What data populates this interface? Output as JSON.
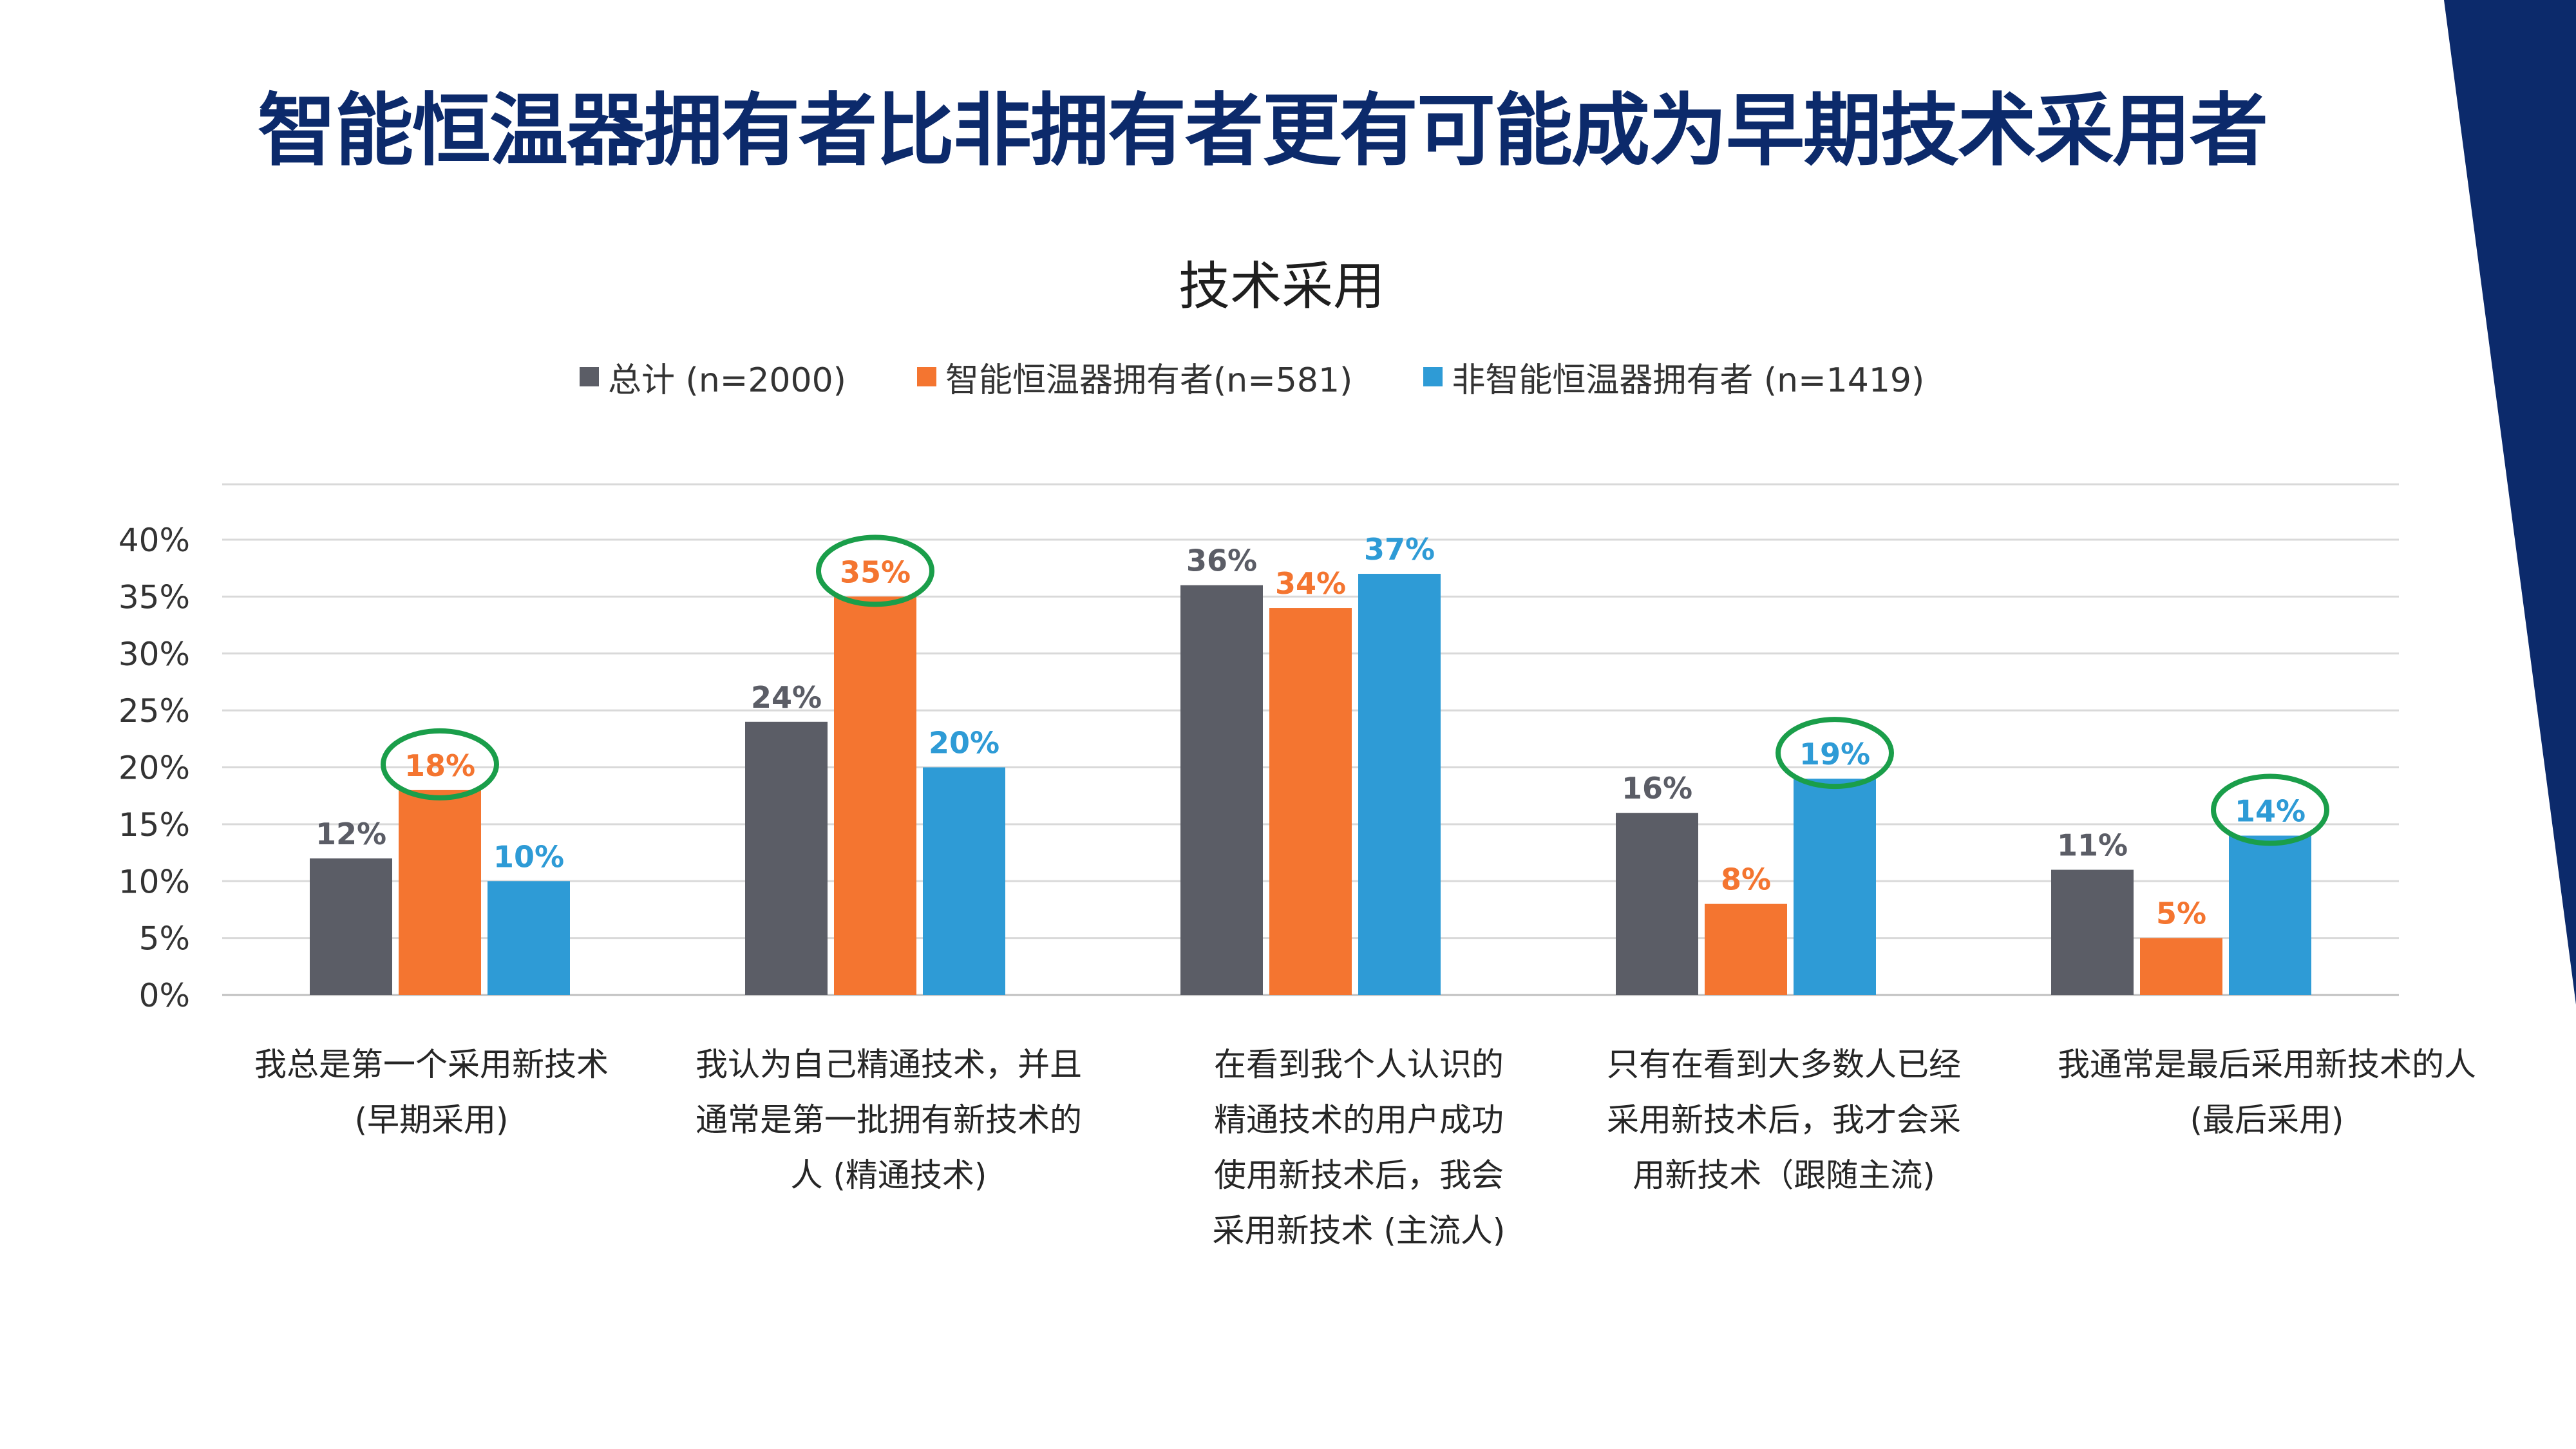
{
  "slide": {
    "title": "智能恒温器拥有者比非拥有者更有可能成为早期技术采用者",
    "accent_color": "#0c2a6b"
  },
  "chart_data": {
    "type": "bar",
    "title": "技术采用",
    "xlabel": "",
    "ylabel": "",
    "ylim": [
      0,
      40
    ],
    "y_ticks": [
      "0%",
      "5%",
      "10%",
      "15%",
      "20%",
      "25%",
      "30%",
      "35%",
      "40%"
    ],
    "grid": true,
    "legend_position": "top",
    "categories": [
      [
        "我总是第一个采用新技术",
        "(早期采用)"
      ],
      [
        "我认为自己精通技术，并且",
        "通常是第一批拥有新技术的",
        "人 (精通技术)"
      ],
      [
        "在看到我个人认识的",
        "精通技术的用户成功",
        "使用新技术后，我会",
        "采用新技术 (主流人)"
      ],
      [
        "只有在看到大多数人已经",
        "采用新技术后，我才会采",
        "用新技术（跟随主流)"
      ],
      [
        "我通常是最后采用新技术的人",
        "(最后采用)"
      ]
    ],
    "series": [
      {
        "name": "总计 (n=2000)",
        "color": "#5b5d66",
        "values": [
          12,
          24,
          36,
          16,
          11
        ],
        "labels": [
          "12%",
          "24%",
          "36%",
          "16%",
          "11%"
        ]
      },
      {
        "name": "智能恒温器拥有者(n=581)",
        "color": "#f47530",
        "values": [
          18,
          35,
          34,
          8,
          5
        ],
        "labels": [
          "18%",
          "35%",
          "34%",
          "8%",
          "5%"
        ]
      },
      {
        "name": "非智能恒温器拥有者 (n=1419)",
        "color": "#2e9bd6",
        "values": [
          10,
          20,
          37,
          19,
          14
        ],
        "labels": [
          "10%",
          "20%",
          "37%",
          "19%",
          "14%"
        ]
      }
    ],
    "highlight_circles": [
      {
        "category": 0,
        "series": 1
      },
      {
        "category": 1,
        "series": 1
      },
      {
        "category": 3,
        "series": 2
      },
      {
        "category": 4,
        "series": 2
      }
    ],
    "highlight_color": "#1a9e4a"
  }
}
